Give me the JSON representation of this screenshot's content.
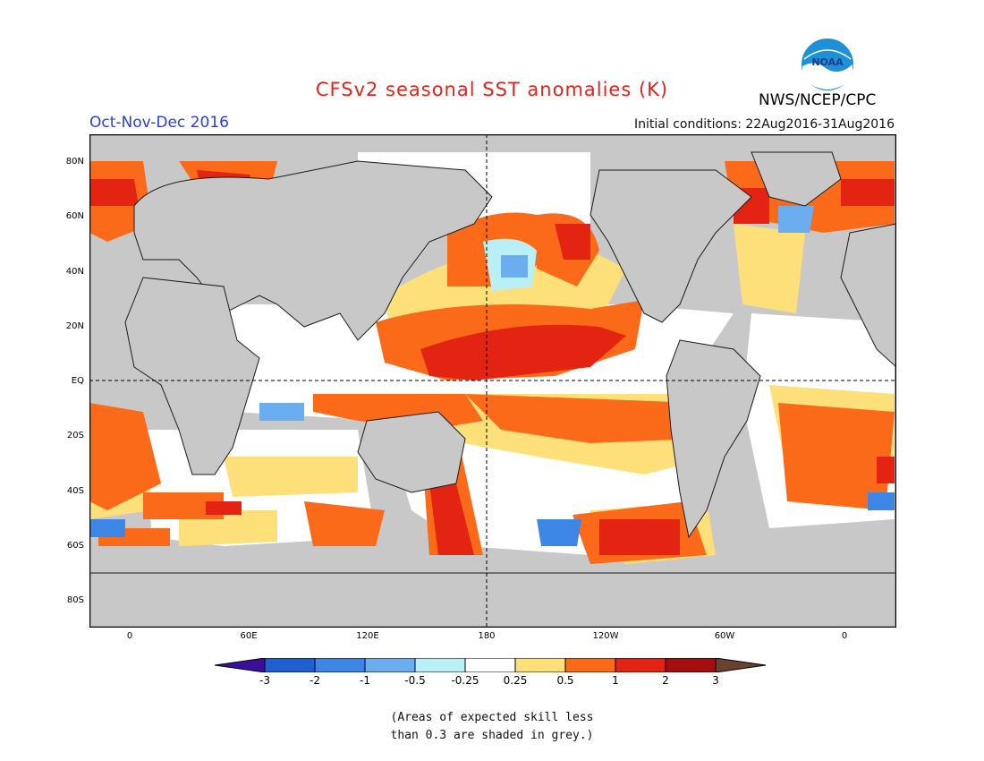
{
  "title": "CFSv2 seasonal SST anomalies (K)",
  "season": "Oct-Nov-Dec 2016",
  "initial_conditions": "Initial conditions: 22Aug2016-31Aug2016",
  "agency": "NWS/NCEP/CPC",
  "logo_text": "NOAA",
  "lat_labels": [
    "80N",
    "60N",
    "40N",
    "20N",
    "EQ",
    "20S",
    "40S",
    "60S",
    "80S"
  ],
  "lon_labels": [
    "0",
    "60E",
    "120E",
    "180",
    "120W",
    "60W",
    "0"
  ],
  "colorbar": {
    "labels": [
      "-3",
      "-2",
      "-1",
      "-0.5",
      "-0.25",
      "0.25",
      "0.5",
      "1",
      "2",
      "3"
    ],
    "colors": [
      "#3b0f9c",
      "#1f5fd0",
      "#3c86e6",
      "#6aaef0",
      "#b9f0f5",
      "#ffffff",
      "#fde07a",
      "#fb6a18",
      "#e42412",
      "#a40e0e",
      "#6b4230"
    ]
  },
  "note_line1": "(Areas of expected skill less",
  "note_line2": "than 0.3 are shaded in grey.)",
  "map_colors": {
    "ocean_grey": "#c8c8c8",
    "land": "#c8c8c8",
    "coast": "#1a1a1a"
  }
}
